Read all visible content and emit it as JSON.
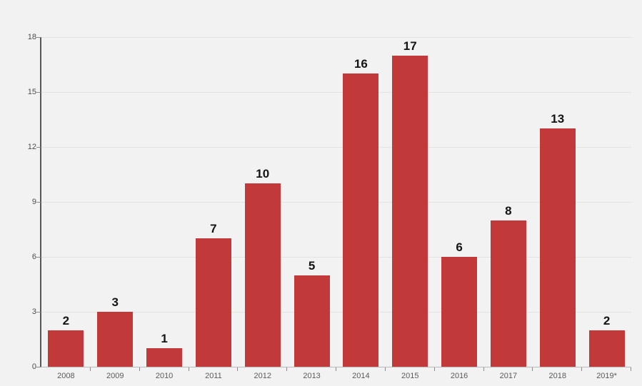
{
  "chart_data": {
    "type": "bar",
    "title": "",
    "xlabel": "",
    "ylabel": "",
    "categories": [
      "2008",
      "2009",
      "2010",
      "2011",
      "2012",
      "2013",
      "2014",
      "2015",
      "2016",
      "2017",
      "2018",
      "2019*"
    ],
    "values": [
      2,
      3,
      1,
      7,
      10,
      5,
      16,
      17,
      6,
      8,
      13,
      2
    ],
    "value_labels": [
      "2",
      "3",
      "1",
      "7",
      "10",
      "5",
      "16",
      "17",
      "6",
      "8",
      "13",
      "2"
    ],
    "ylim": [
      0,
      18
    ],
    "yticks": [
      0,
      3,
      6,
      9,
      12,
      15,
      18
    ],
    "grid": true,
    "legend": "none",
    "colors": {
      "bar": "#c23939",
      "background": "#f2f2f2",
      "gridline": "#e2e2e2",
      "y_axis_line": "#57575a",
      "x_axis_line": "#b9b9b9",
      "tick_mark": "#8a8a8a",
      "y_tick_label": "#4c4c4c",
      "x_tick_label": "#5a5a5a",
      "value_label": "#141414"
    }
  }
}
